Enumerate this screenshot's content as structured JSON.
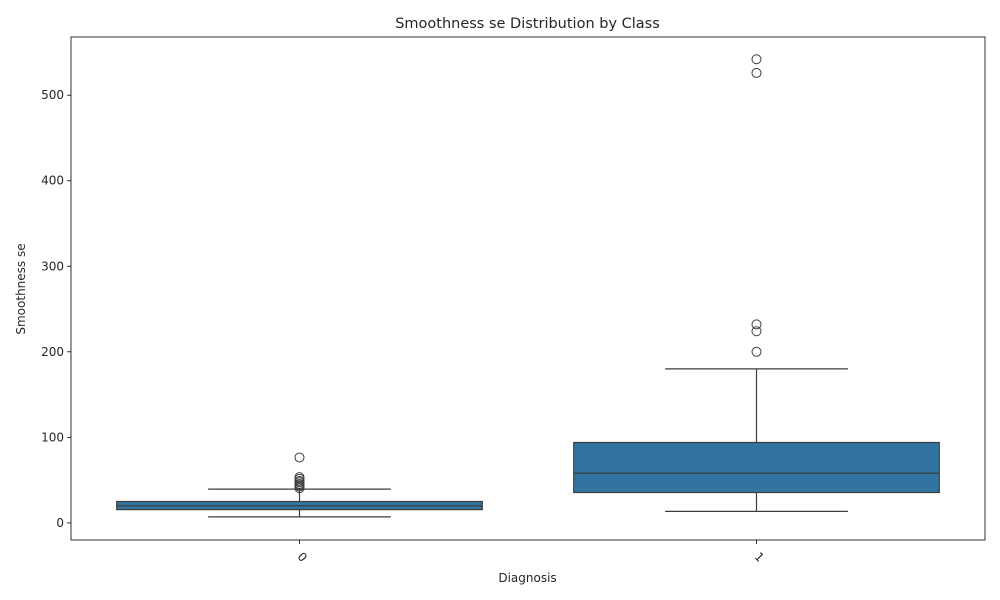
{
  "chart_data": {
    "type": "box",
    "title": "Smoothness se Distribution by Class",
    "xlabel": "Diagnosis",
    "ylabel": "Smoothness se",
    "categories": [
      "0",
      "1"
    ],
    "ylim": [
      -20,
      568
    ],
    "yticks": [
      0,
      100,
      200,
      300,
      400,
      500
    ],
    "grid": false,
    "legend": "none",
    "box_color": "#3274a1",
    "line_color": "#3d3d3d",
    "series": [
      {
        "category": "0",
        "whisker_low": 7,
        "q1": 15.5,
        "median": 20,
        "q3": 25,
        "whisker_high": 39.5,
        "outliers": [
          76.5,
          53.5,
          51.5,
          49,
          47.5,
          45.5,
          44,
          42.5,
          40.5
        ]
      },
      {
        "category": "1",
        "whisker_low": 13.5,
        "q1": 35.5,
        "median": 58,
        "q3": 94,
        "whisker_high": 180,
        "outliers": [
          200,
          224,
          232,
          526,
          542
        ]
      }
    ]
  }
}
